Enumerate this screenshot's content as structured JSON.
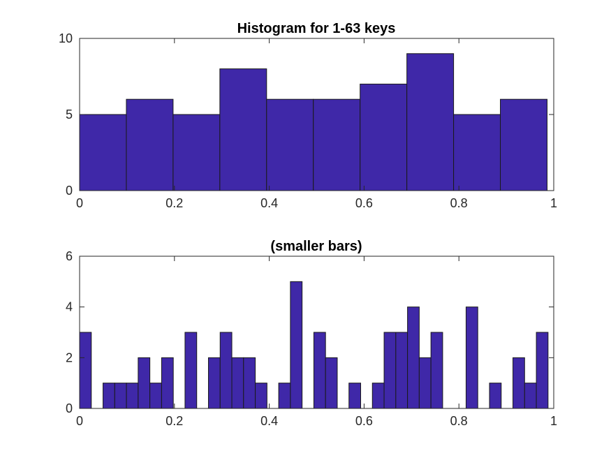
{
  "chart_data": [
    {
      "type": "bar",
      "title": "Histogram for 1-63 keys",
      "xlabel": "",
      "ylabel": "",
      "xlim": [
        0,
        1
      ],
      "ylim": [
        0,
        10
      ],
      "xticks": [
        "0",
        "0.2",
        "0.4",
        "0.6",
        "0.8",
        "1"
      ],
      "yticks": [
        "0",
        "5",
        "10"
      ],
      "bin_start": 0,
      "bin_width": 0.0986,
      "values": [
        5,
        6,
        5,
        8,
        6,
        6,
        7,
        9,
        5,
        6
      ],
      "color": "#3F28A8",
      "grid": false
    },
    {
      "type": "bar",
      "title": "(smaller bars)",
      "xlabel": "",
      "ylabel": "",
      "xlim": [
        0,
        1
      ],
      "ylim": [
        0,
        6
      ],
      "xticks": [
        "0",
        "0.2",
        "0.4",
        "0.6",
        "0.8",
        "1"
      ],
      "yticks": [
        "0",
        "2",
        "4",
        "6"
      ],
      "bin_start": 0,
      "bin_width": 0.0247,
      "values": [
        3,
        0,
        1,
        1,
        1,
        2,
        1,
        2,
        0,
        3,
        0,
        2,
        3,
        2,
        2,
        1,
        0,
        1,
        5,
        0,
        3,
        2,
        0,
        1,
        0,
        1,
        3,
        3,
        4,
        2,
        3,
        0,
        0,
        4,
        0,
        1,
        0,
        2,
        1,
        3
      ],
      "color": "#3F28A8",
      "grid": false
    }
  ]
}
